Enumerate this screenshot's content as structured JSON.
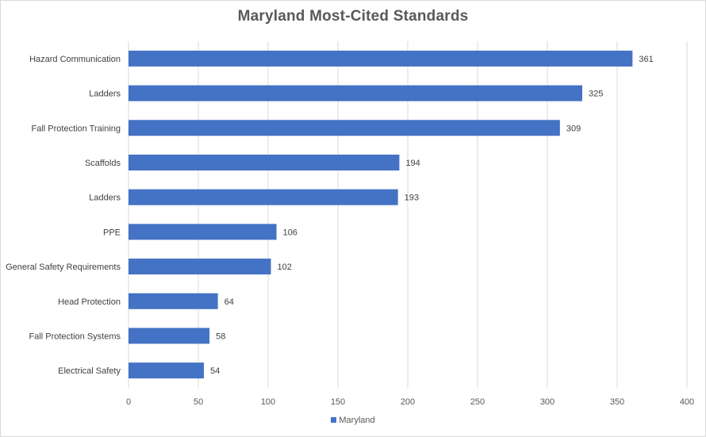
{
  "chart_data": {
    "type": "bar",
    "orientation": "horizontal",
    "title": "Maryland  Most-Cited  Standards",
    "categories": [
      "Hazard Communication",
      "Ladders",
      "Fall Protection Training",
      "Scaffolds",
      "Ladders",
      "PPE",
      "General Safety Requirements",
      "Head Protection",
      "Fall Protection Systems",
      "Electrical Safety"
    ],
    "series": [
      {
        "name": "Maryland",
        "values": [
          361,
          325,
          309,
          194,
          193,
          106,
          102,
          64,
          58,
          54
        ],
        "color": "#4472c4"
      }
    ],
    "xlim": [
      0,
      400
    ],
    "xticks": [
      0,
      50,
      100,
      150,
      200,
      250,
      300,
      350,
      400
    ],
    "grid": true,
    "data_labels": true,
    "legend_position": "bottom"
  }
}
